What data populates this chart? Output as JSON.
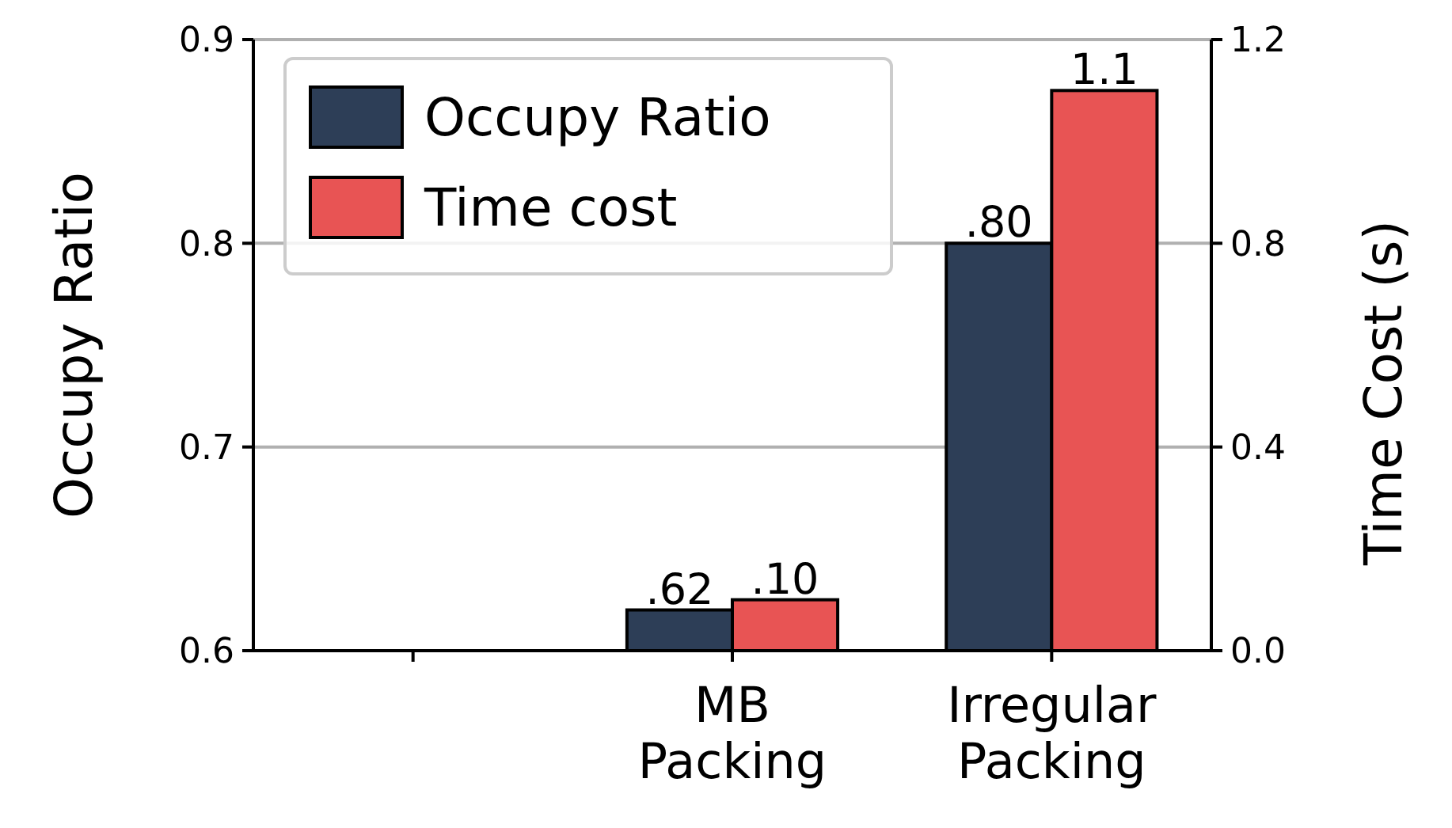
{
  "chart_data": {
    "type": "bar",
    "categories": [
      null,
      "MB\nPacking",
      "Irregular\nPacking"
    ],
    "series": [
      {
        "name": "Occupy Ratio",
        "color": "#2d3e57",
        "values": [
          null,
          0.62,
          0.8
        ],
        "value_labels": [
          null,
          ".62",
          ".80"
        ]
      },
      {
        "name": "Time cost",
        "color": "#e85454",
        "values": [
          null,
          0.1,
          1.1
        ],
        "value_labels": [
          null,
          ".10",
          "1.1"
        ],
        "axis": "y2"
      }
    ],
    "ylabel": "Occupy Ratio",
    "y2label": "Time Cost (s)",
    "ylim": [
      0.6,
      0.9
    ],
    "yticks": [
      {
        "value": 0.6,
        "label": "0.6"
      },
      {
        "value": 0.7,
        "label": "0.7"
      },
      {
        "value": 0.8,
        "label": "0.8"
      },
      {
        "value": 0.9,
        "label": "0.9"
      }
    ],
    "y2lim": [
      0,
      1.2
    ],
    "y2ticks": [
      {
        "value": 0,
        "label": "0.0"
      },
      {
        "value": 0.4,
        "label": "0.4"
      },
      {
        "value": 0.8,
        "label": "0.8"
      },
      {
        "value": 1.2,
        "label": "1.2"
      }
    ],
    "grid": "y",
    "legend": "top left"
  }
}
